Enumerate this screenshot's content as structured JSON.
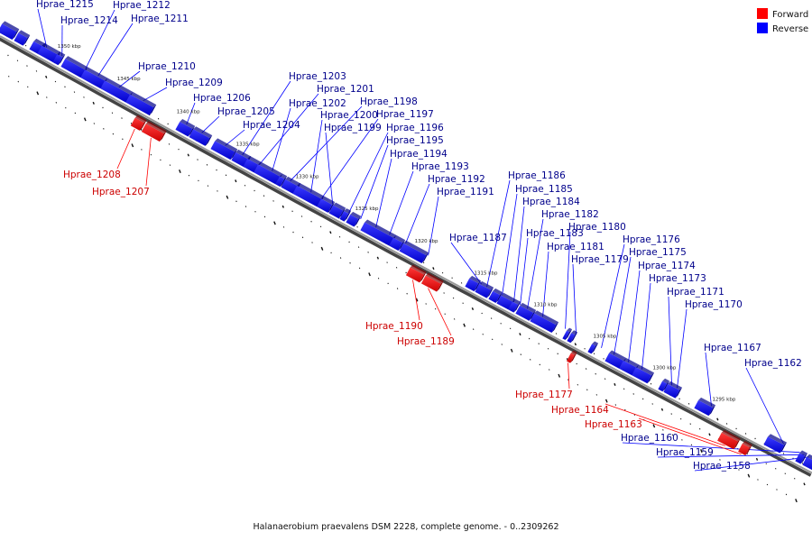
{
  "caption": "Halanaerobium praevalens DSM 2228, complete genome. - 0..2309262",
  "legend": [
    {
      "label": "Forward",
      "color": "#ff0000"
    },
    {
      "label": "Reverse",
      "color": "#0000ff"
    }
  ],
  "colors": {
    "forward": "#ff0000",
    "forward_label": "#cc0000",
    "reverse": "#0000ff",
    "reverse_label": "#00008b",
    "backbone": "#555555"
  },
  "ticks": [
    "1350 kbp",
    "1345 kbp",
    "1340 kbp",
    "1335 kbp",
    "1330 kbp",
    "1325 kbp",
    "1320 kbp",
    "1315 kbp",
    "1310 kbp",
    "1305 kbp",
    "1300 kbp",
    "1295 kbp"
  ],
  "reverse_genes": [
    "Hprae_1215",
    "Hprae_1214",
    "Hprae_1212",
    "Hprae_1211",
    "Hprae_1210",
    "Hprae_1209",
    "Hprae_1206",
    "Hprae_1205",
    "Hprae_1204",
    "Hprae_1203",
    "Hprae_1201",
    "Hprae_1202",
    "Hprae_1198",
    "Hprae_1200",
    "Hprae_1197",
    "Hprae_1199",
    "Hprae_1196",
    "Hprae_1195",
    "Hprae_1194",
    "Hprae_1193",
    "Hprae_1192",
    "Hprae_1191",
    "Hprae_1187",
    "Hprae_1186",
    "Hprae_1185",
    "Hprae_1184",
    "Hprae_1183",
    "Hprae_1182",
    "Hprae_1181",
    "Hprae_1180",
    "Hprae_1179",
    "Hprae_1176",
    "Hprae_1175",
    "Hprae_1174",
    "Hprae_1173",
    "Hprae_1171",
    "Hprae_1170",
    "Hprae_1167",
    "Hprae_1162",
    "Hprae_1160",
    "Hprae_1159",
    "Hprae_1158"
  ],
  "forward_genes": [
    "Hprae_1208",
    "Hprae_1207",
    "Hprae_1190",
    "Hprae_1189",
    "Hprae_1177",
    "Hprae_1164",
    "Hprae_1163"
  ]
}
